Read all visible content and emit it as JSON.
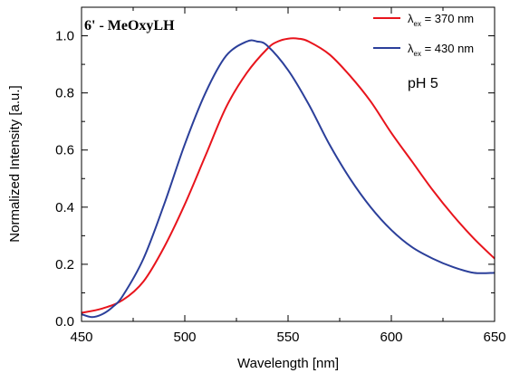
{
  "chart_data": {
    "type": "line",
    "title": "6' - MeOxyLH",
    "annotation": "pH 5",
    "xlabel": "Wavelength [nm]",
    "ylabel": "Normalized Intensity [a.u.]",
    "xlim": [
      450,
      650
    ],
    "ylim": [
      0.0,
      1.1
    ],
    "xticks": [
      "450",
      "500",
      "550",
      "600",
      "650"
    ],
    "yticks": [
      "0.0",
      "0.2",
      "0.4",
      "0.6",
      "0.8",
      "1.0"
    ],
    "legend_position": "top-right",
    "grid": false,
    "series": [
      {
        "name_prefix": "λ",
        "name_sub": "ex",
        "name_suffix": " = 370 nm",
        "color": "#e8141c",
        "x": [
          450,
          460,
          470,
          480,
          490,
          500,
          510,
          520,
          530,
          540,
          545,
          550,
          555,
          560,
          570,
          580,
          590,
          600,
          610,
          620,
          630,
          640,
          650
        ],
        "y": [
          0.03,
          0.045,
          0.075,
          0.14,
          0.26,
          0.41,
          0.58,
          0.75,
          0.87,
          0.955,
          0.98,
          0.99,
          0.99,
          0.98,
          0.935,
          0.86,
          0.77,
          0.66,
          0.56,
          0.46,
          0.37,
          0.29,
          0.22
        ]
      },
      {
        "name_prefix": "λ",
        "name_sub": "ex",
        "name_suffix": " = 430 nm",
        "color": "#2b3f9a",
        "x": [
          450,
          455,
          460,
          465,
          470,
          480,
          490,
          500,
          510,
          520,
          530,
          535,
          540,
          550,
          560,
          570,
          580,
          590,
          600,
          610,
          620,
          630,
          640,
          650
        ],
        "y": [
          0.025,
          0.015,
          0.025,
          0.05,
          0.09,
          0.22,
          0.41,
          0.62,
          0.8,
          0.93,
          0.98,
          0.98,
          0.965,
          0.88,
          0.76,
          0.62,
          0.5,
          0.4,
          0.32,
          0.26,
          0.22,
          0.19,
          0.17,
          0.17
        ]
      }
    ]
  }
}
